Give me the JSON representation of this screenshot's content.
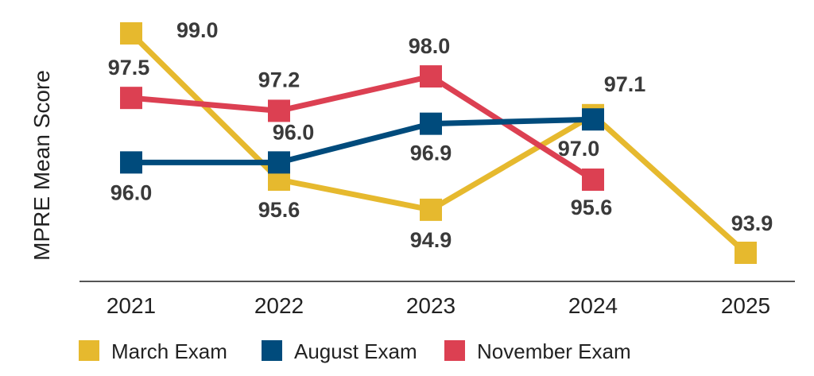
{
  "chart_data": {
    "type": "line",
    "title": "",
    "xlabel": "",
    "ylabel": "MPRE Mean Score",
    "categories": [
      "2021",
      "2022",
      "2023",
      "2024",
      "2025"
    ],
    "ylim": [
      93,
      99.5
    ],
    "grid": false,
    "legend_position": "bottom",
    "series": [
      {
        "name": "March Exam",
        "color": "#E6B92E",
        "values": [
          99.0,
          95.6,
          94.9,
          97.1,
          93.9
        ],
        "labels": [
          "99.0",
          "95.6",
          "94.9",
          "97.1",
          "93.9"
        ]
      },
      {
        "name": "August Exam",
        "color": "#004B7C",
        "values": [
          96.0,
          96.0,
          96.9,
          97.0,
          null
        ],
        "labels": [
          "96.0",
          "96.0",
          "96.9",
          "97.0",
          null
        ]
      },
      {
        "name": "November Exam",
        "color": "#DC4052",
        "values": [
          97.5,
          97.2,
          98.0,
          95.6,
          null
        ],
        "labels": [
          "97.5",
          "97.2",
          "98.0",
          "95.6",
          null
        ]
      }
    ]
  }
}
